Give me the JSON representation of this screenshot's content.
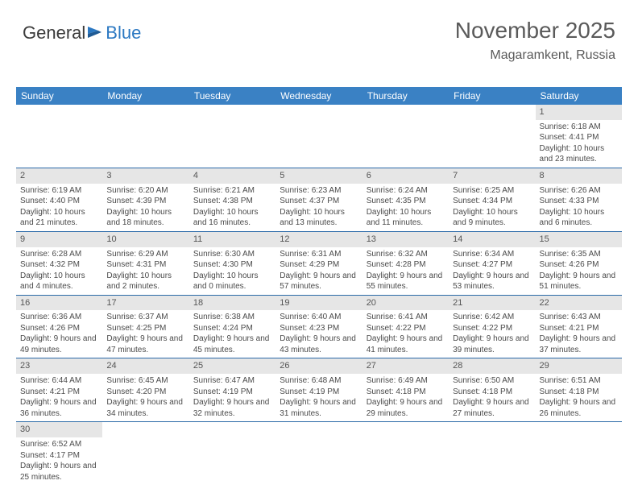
{
  "logo": {
    "text1": "General",
    "text2": "Blue"
  },
  "header": {
    "title": "November 2025",
    "location": "Magaramkent, Russia"
  },
  "colors": {
    "header_bg": "#3a81c4",
    "header_text": "#ffffff",
    "daynum_bg": "#e6e6e6",
    "border": "#2b6aa8",
    "text": "#4a4a4a",
    "title_text": "#5a5a5a"
  },
  "weekdays": [
    "Sunday",
    "Monday",
    "Tuesday",
    "Wednesday",
    "Thursday",
    "Friday",
    "Saturday"
  ],
  "weeks": [
    [
      null,
      null,
      null,
      null,
      null,
      null,
      {
        "n": "1",
        "sunrise": "6:18 AM",
        "sunset": "4:41 PM",
        "daylight": "10 hours and 23 minutes."
      }
    ],
    [
      {
        "n": "2",
        "sunrise": "6:19 AM",
        "sunset": "4:40 PM",
        "daylight": "10 hours and 21 minutes."
      },
      {
        "n": "3",
        "sunrise": "6:20 AM",
        "sunset": "4:39 PM",
        "daylight": "10 hours and 18 minutes."
      },
      {
        "n": "4",
        "sunrise": "6:21 AM",
        "sunset": "4:38 PM",
        "daylight": "10 hours and 16 minutes."
      },
      {
        "n": "5",
        "sunrise": "6:23 AM",
        "sunset": "4:37 PM",
        "daylight": "10 hours and 13 minutes."
      },
      {
        "n": "6",
        "sunrise": "6:24 AM",
        "sunset": "4:35 PM",
        "daylight": "10 hours and 11 minutes."
      },
      {
        "n": "7",
        "sunrise": "6:25 AM",
        "sunset": "4:34 PM",
        "daylight": "10 hours and 9 minutes."
      },
      {
        "n": "8",
        "sunrise": "6:26 AM",
        "sunset": "4:33 PM",
        "daylight": "10 hours and 6 minutes."
      }
    ],
    [
      {
        "n": "9",
        "sunrise": "6:28 AM",
        "sunset": "4:32 PM",
        "daylight": "10 hours and 4 minutes."
      },
      {
        "n": "10",
        "sunrise": "6:29 AM",
        "sunset": "4:31 PM",
        "daylight": "10 hours and 2 minutes."
      },
      {
        "n": "11",
        "sunrise": "6:30 AM",
        "sunset": "4:30 PM",
        "daylight": "10 hours and 0 minutes."
      },
      {
        "n": "12",
        "sunrise": "6:31 AM",
        "sunset": "4:29 PM",
        "daylight": "9 hours and 57 minutes."
      },
      {
        "n": "13",
        "sunrise": "6:32 AM",
        "sunset": "4:28 PM",
        "daylight": "9 hours and 55 minutes."
      },
      {
        "n": "14",
        "sunrise": "6:34 AM",
        "sunset": "4:27 PM",
        "daylight": "9 hours and 53 minutes."
      },
      {
        "n": "15",
        "sunrise": "6:35 AM",
        "sunset": "4:26 PM",
        "daylight": "9 hours and 51 minutes."
      }
    ],
    [
      {
        "n": "16",
        "sunrise": "6:36 AM",
        "sunset": "4:26 PM",
        "daylight": "9 hours and 49 minutes."
      },
      {
        "n": "17",
        "sunrise": "6:37 AM",
        "sunset": "4:25 PM",
        "daylight": "9 hours and 47 minutes."
      },
      {
        "n": "18",
        "sunrise": "6:38 AM",
        "sunset": "4:24 PM",
        "daylight": "9 hours and 45 minutes."
      },
      {
        "n": "19",
        "sunrise": "6:40 AM",
        "sunset": "4:23 PM",
        "daylight": "9 hours and 43 minutes."
      },
      {
        "n": "20",
        "sunrise": "6:41 AM",
        "sunset": "4:22 PM",
        "daylight": "9 hours and 41 minutes."
      },
      {
        "n": "21",
        "sunrise": "6:42 AM",
        "sunset": "4:22 PM",
        "daylight": "9 hours and 39 minutes."
      },
      {
        "n": "22",
        "sunrise": "6:43 AM",
        "sunset": "4:21 PM",
        "daylight": "9 hours and 37 minutes."
      }
    ],
    [
      {
        "n": "23",
        "sunrise": "6:44 AM",
        "sunset": "4:21 PM",
        "daylight": "9 hours and 36 minutes."
      },
      {
        "n": "24",
        "sunrise": "6:45 AM",
        "sunset": "4:20 PM",
        "daylight": "9 hours and 34 minutes."
      },
      {
        "n": "25",
        "sunrise": "6:47 AM",
        "sunset": "4:19 PM",
        "daylight": "9 hours and 32 minutes."
      },
      {
        "n": "26",
        "sunrise": "6:48 AM",
        "sunset": "4:19 PM",
        "daylight": "9 hours and 31 minutes."
      },
      {
        "n": "27",
        "sunrise": "6:49 AM",
        "sunset": "4:18 PM",
        "daylight": "9 hours and 29 minutes."
      },
      {
        "n": "28",
        "sunrise": "6:50 AM",
        "sunset": "4:18 PM",
        "daylight": "9 hours and 27 minutes."
      },
      {
        "n": "29",
        "sunrise": "6:51 AM",
        "sunset": "4:18 PM",
        "daylight": "9 hours and 26 minutes."
      }
    ],
    [
      {
        "n": "30",
        "sunrise": "6:52 AM",
        "sunset": "4:17 PM",
        "daylight": "9 hours and 25 minutes."
      },
      null,
      null,
      null,
      null,
      null,
      null
    ]
  ],
  "labels": {
    "sunrise": "Sunrise: ",
    "sunset": "Sunset: ",
    "daylight": "Daylight: "
  }
}
